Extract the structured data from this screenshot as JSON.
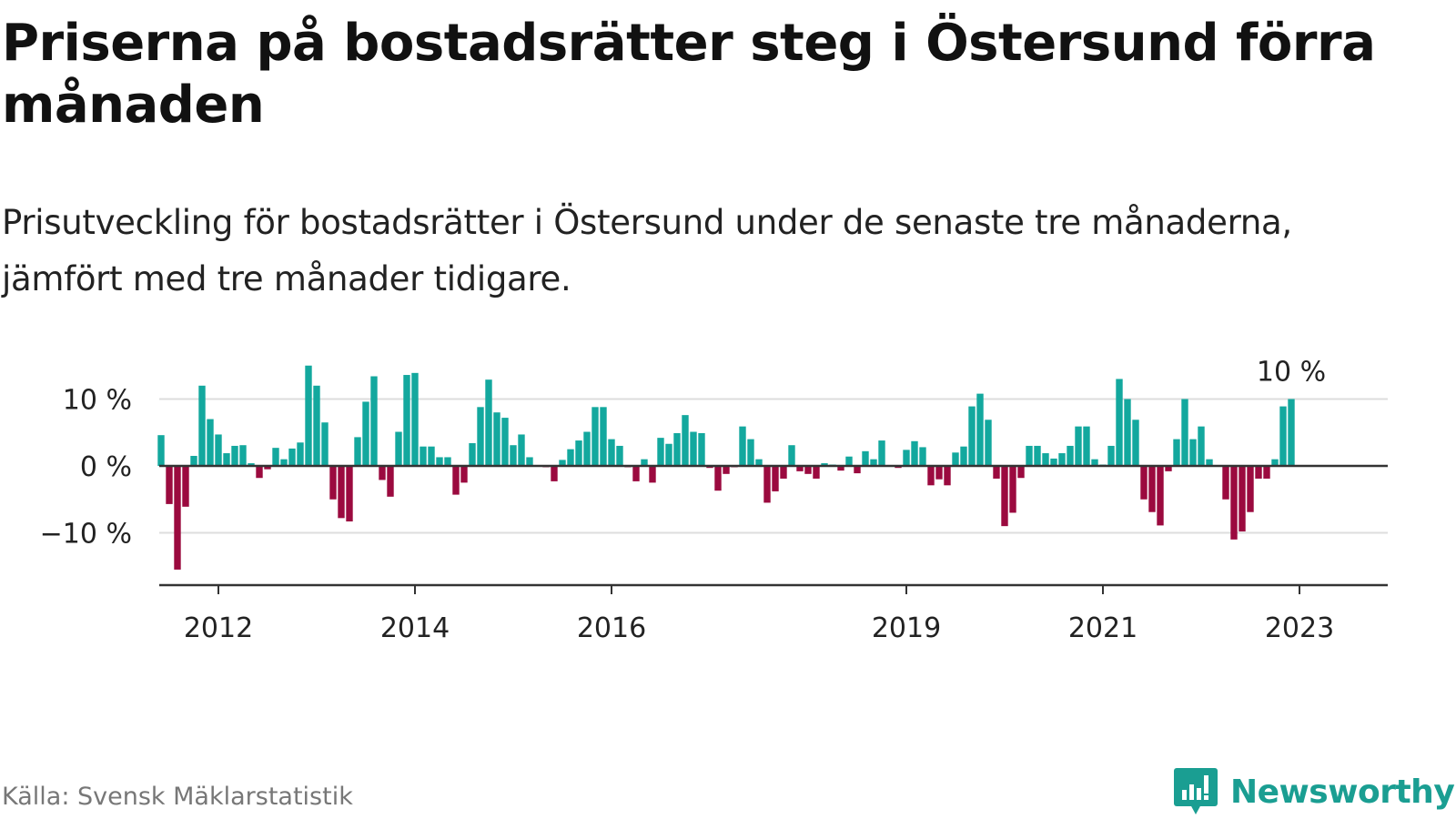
{
  "title": "Priserna på bostadsrätter steg i Östersund förra månaden",
  "subtitle": "Prisutveckling för bostadsrätter i Östersund under de senaste tre månaderna, jämfört med tre månader tidigare.",
  "source": "Källa: Svensk Mäklarstatistik",
  "brand": {
    "name": "Newsworthy",
    "icon": "newsworthy-logo-icon"
  },
  "colors": {
    "positive": "#13a89e",
    "negative": "#9b0a3f",
    "grid": "#dddddd",
    "zero": "#333333"
  },
  "chart_data": {
    "type": "bar",
    "start": "2011-06",
    "values": [
      4.6,
      -5.7,
      -15.5,
      -6.1,
      1.5,
      12.0,
      7.0,
      4.7,
      1.9,
      3.0,
      3.1,
      0.4,
      -1.8,
      -0.5,
      2.7,
      1.0,
      2.6,
      3.5,
      15.0,
      12.0,
      6.5,
      -5.0,
      -7.8,
      -8.3,
      4.3,
      9.6,
      13.4,
      -2.1,
      -4.6,
      5.1,
      13.6,
      13.9,
      2.9,
      2.9,
      1.3,
      1.3,
      -4.3,
      -2.5,
      3.4,
      8.8,
      12.9,
      8.0,
      7.2,
      3.1,
      4.7,
      1.3,
      0.0,
      -0.2,
      -2.3,
      0.9,
      2.5,
      3.8,
      5.1,
      8.8,
      8.8,
      4.0,
      3.0,
      -0.2,
      -2.3,
      1.0,
      -2.5,
      4.2,
      3.3,
      4.9,
      7.6,
      5.1,
      4.9,
      -0.3,
      -3.7,
      -1.2,
      -0.2,
      5.9,
      4.0,
      1.0,
      -5.5,
      -3.8,
      -1.9,
      3.1,
      -0.8,
      -1.2,
      -1.9,
      0.4,
      0.2,
      -0.7,
      1.4,
      -1.1,
      2.2,
      1.0,
      3.8,
      0.1,
      -0.3,
      2.4,
      3.7,
      2.8,
      -2.9,
      -2.0,
      -2.9,
      2.0,
      2.9,
      8.9,
      10.8,
      6.9,
      -1.9,
      -9.0,
      -7.0,
      -1.8,
      3.0,
      3.0,
      1.9,
      1.1,
      1.9,
      3.0,
      5.9,
      5.9,
      1.0,
      0.2,
      3.0,
      13.0,
      10.0,
      6.9,
      -5.0,
      -6.9,
      -8.9,
      -0.8,
      4.0,
      10.0,
      4.0,
      5.9,
      1.0,
      0.1,
      -5.0,
      -11.0,
      -9.8,
      -6.9,
      -1.9,
      -1.9,
      1.0,
      8.9,
      10.0
    ],
    "ylim": [
      -17.5,
      17.5
    ],
    "yticks": [
      -10,
      0,
      10
    ],
    "ytick_labels": [
      "−10 %",
      "0 %",
      "10 %"
    ],
    "xticks": [
      {
        "date": "2012-01",
        "label": "2012"
      },
      {
        "date": "2014-01",
        "label": "2014"
      },
      {
        "date": "2016-01",
        "label": "2016"
      },
      {
        "date": "2019-01",
        "label": "2019"
      },
      {
        "date": "2021-01",
        "label": "2021"
      },
      {
        "date": "2023-01",
        "label": "2023"
      }
    ],
    "x_end": "2023-10",
    "last_label": "10 %",
    "grid": true
  }
}
